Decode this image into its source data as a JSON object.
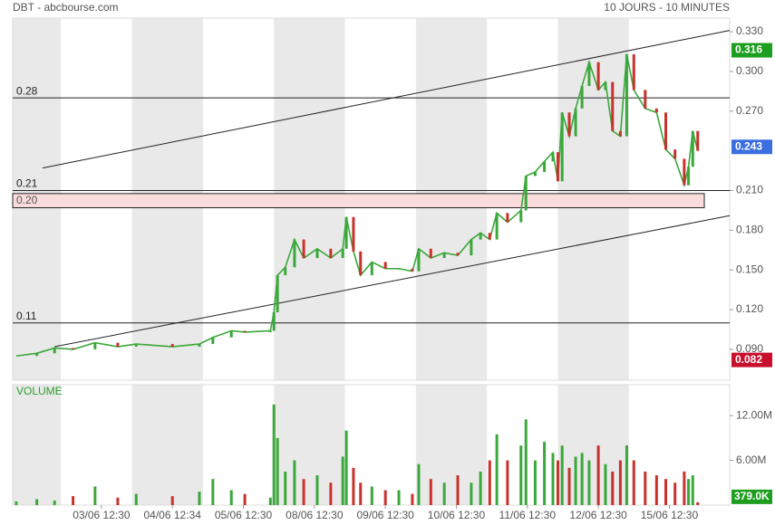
{
  "chart_data": [
    {
      "type": "line",
      "title": "DBT - abcbourse.com",
      "subtitle": "10 JOURS - 10 MINUTES",
      "x": [
        0.37,
        0.66,
        0.91,
        1.17,
        1.48,
        1.8,
        2.06,
        2.57,
        2.95,
        3.14,
        3.4,
        3.59,
        3.95,
        4.0,
        4.05,
        4.16,
        4.29,
        4.42,
        4.61,
        4.8,
        4.97,
        5.02,
        5.12,
        5.22,
        5.38,
        5.57,
        5.76,
        5.95,
        6.04,
        6.21,
        6.4,
        6.59,
        6.78,
        6.91,
        7.04,
        7.14,
        7.29,
        7.48,
        7.55,
        7.68,
        7.81,
        7.93,
        8.0,
        8.06,
        8.16,
        8.25,
        8.34,
        8.44,
        8.57,
        8.67,
        8.77,
        8.88,
        8.97,
        9.07,
        9.23,
        9.39,
        9.52,
        9.65,
        9.78,
        9.84,
        9.9,
        9.97
      ],
      "values": [
        0.085,
        0.087,
        0.091,
        0.09,
        0.095,
        0.092,
        0.094,
        0.092,
        0.094,
        0.099,
        0.104,
        0.103,
        0.104,
        0.118,
        0.146,
        0.152,
        0.173,
        0.159,
        0.166,
        0.159,
        0.166,
        0.19,
        0.164,
        0.146,
        0.156,
        0.151,
        0.151,
        0.149,
        0.166,
        0.159,
        0.163,
        0.161,
        0.173,
        0.178,
        0.173,
        0.193,
        0.186,
        0.195,
        0.221,
        0.224,
        0.232,
        0.239,
        0.217,
        0.269,
        0.251,
        0.272,
        0.289,
        0.307,
        0.286,
        0.292,
        0.255,
        0.251,
        0.313,
        0.286,
        0.272,
        0.269,
        0.241,
        0.234,
        0.214,
        0.228,
        0.255,
        0.24
      ],
      "up_color": "#3aa83a",
      "down_color": "#c8322c",
      "xlim": [
        0.32,
        10.42
      ],
      "xticks": [
        {
          "value": 1.57,
          "label": "03/06 12:30"
        },
        {
          "value": 2.57,
          "label": "04/06 12:34"
        },
        {
          "value": 3.57,
          "label": "05/06 12:30"
        },
        {
          "value": 4.57,
          "label": "08/06 12:30"
        },
        {
          "value": 5.57,
          "label": "09/06 12:30"
        },
        {
          "value": 6.57,
          "label": "10/06 12:30"
        },
        {
          "value": 7.57,
          "label": "11/06 12:30"
        },
        {
          "value": 8.57,
          "label": "12/06 12:30"
        },
        {
          "value": 9.57,
          "label": "15/06 12:30"
        }
      ],
      "shaded_days": [
        [
          0.32,
          1
        ],
        [
          2,
          3
        ],
        [
          4,
          5
        ],
        [
          6,
          7
        ],
        [
          8,
          9
        ]
      ],
      "ylim": [
        0.0667,
        0.3403
      ],
      "yticks": [
        {
          "value": 0.33,
          "label": "0.330"
        },
        {
          "value": 0.3,
          "label": "0.300"
        },
        {
          "value": 0.27,
          "label": "0.270"
        },
        {
          "value": 0.21,
          "label": "0.210"
        },
        {
          "value": 0.18,
          "label": "0.180"
        },
        {
          "value": 0.15,
          "label": "0.150"
        },
        {
          "value": 0.12,
          "label": "0.120"
        },
        {
          "value": 0.09,
          "label": "0.090"
        }
      ],
      "levels": [
        0.28,
        0.21,
        0.11
      ],
      "zone": {
        "label": "0.20",
        "range": [
          0.197,
          0.2077
        ]
      },
      "trendlines": [
        {
          "x": [
            0.74,
            10.42
          ],
          "y": [
            0.227,
            0.331
          ]
        },
        {
          "x": [
            0.91,
            10.42
          ],
          "y": [
            0.092,
            0.191
          ]
        }
      ],
      "tags": [
        {
          "value": 0.316,
          "color": "#1e9e1e"
        },
        {
          "value": 0.243,
          "color": "#3b6fe0"
        },
        {
          "value": 0.082,
          "color": "#c8102e"
        }
      ]
    },
    {
      "type": "bar",
      "title": "VOLUME",
      "x": [
        0.37,
        0.66,
        0.91,
        1.17,
        1.48,
        1.8,
        2.06,
        2.57,
        2.95,
        3.14,
        3.4,
        3.59,
        3.95,
        4.0,
        4.05,
        4.16,
        4.29,
        4.42,
        4.61,
        4.8,
        4.97,
        5.02,
        5.12,
        5.22,
        5.38,
        5.57,
        5.76,
        5.95,
        6.04,
        6.21,
        6.4,
        6.59,
        6.78,
        6.91,
        7.04,
        7.14,
        7.29,
        7.48,
        7.55,
        7.68,
        7.81,
        7.93,
        8.0,
        8.06,
        8.16,
        8.25,
        8.34,
        8.44,
        8.57,
        8.67,
        8.77,
        8.88,
        8.97,
        9.07,
        9.23,
        9.39,
        9.52,
        9.65,
        9.78,
        9.84,
        9.9,
        9.97
      ],
      "values": [
        0.5,
        0.8,
        0.6,
        1.2,
        2.5,
        1.0,
        1.5,
        1.2,
        1.8,
        3.5,
        2.0,
        1.5,
        1.0,
        13.5,
        9.0,
        4.5,
        6.0,
        3.5,
        4.0,
        3.0,
        6.5,
        10.0,
        5.0,
        3.0,
        2.5,
        2.0,
        2.0,
        1.5,
        5.5,
        3.5,
        3.0,
        4.0,
        3.0,
        4.5,
        6.0,
        9.5,
        6.0,
        8.0,
        11.5,
        6.0,
        8.5,
        7.0,
        6.0,
        8.0,
        5.0,
        6.5,
        7.0,
        6.0,
        8.0,
        5.5,
        4.5,
        6.0,
        8.0,
        6.0,
        4.5,
        4.0,
        3.5,
        3.0,
        4.5,
        3.5,
        4.0,
        0.379
      ],
      "ylim": [
        0,
        16.16
      ],
      "yticks": [
        {
          "value": 12,
          "label": "12.00M"
        },
        {
          "value": 6,
          "label": "6.00M"
        }
      ],
      "tag": {
        "value": 0.379,
        "label": "379.0K",
        "color": "#1e9e1e"
      }
    }
  ]
}
